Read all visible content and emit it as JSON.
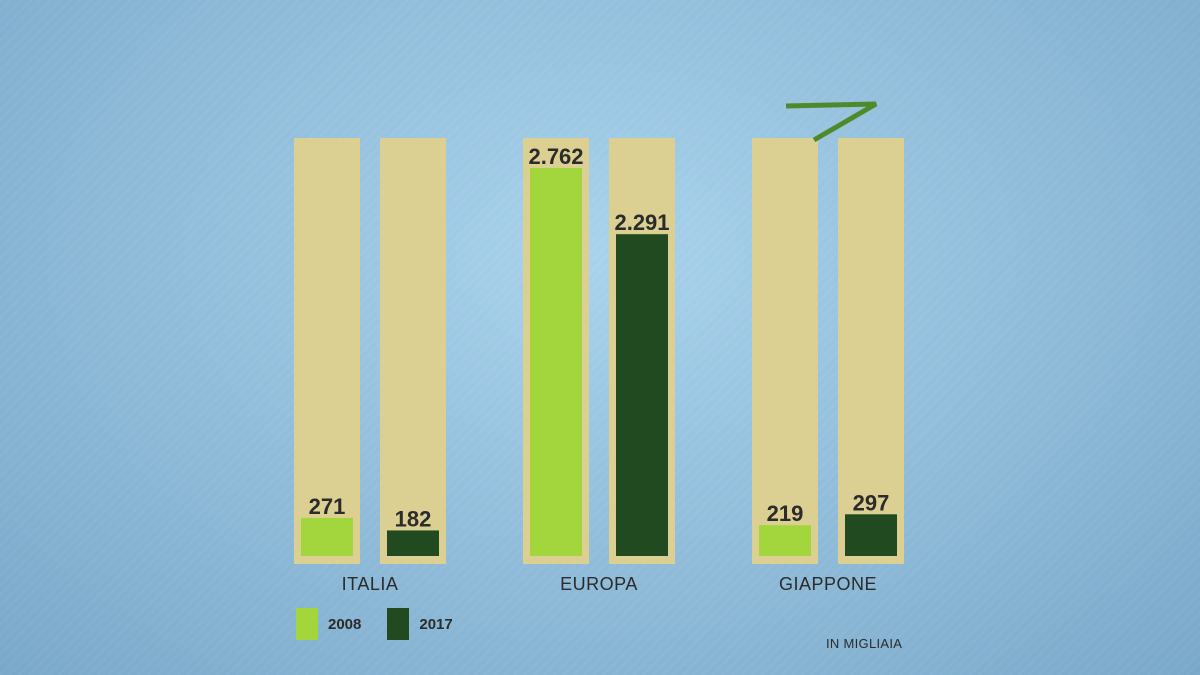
{
  "chart_data": {
    "type": "bar",
    "categories": [
      "ITALIA",
      "EUROPA",
      "GIAPPONE"
    ],
    "series": [
      {
        "name": "2008",
        "values": [
          271,
          2762,
          219
        ],
        "labels": [
          "271",
          "2.762",
          "219"
        ],
        "color": "#a3d63c"
      },
      {
        "name": "2017",
        "values": [
          182,
          2291,
          297
        ],
        "labels": [
          "182",
          "2.291",
          "297"
        ],
        "color": "#214a21"
      }
    ],
    "ylim": [
      0,
      2762
    ],
    "note": "IN MIGLIAIA",
    "legend_position": "bottom-left",
    "track_color": "#dbd092",
    "accent_color": "#4e8a2c"
  }
}
